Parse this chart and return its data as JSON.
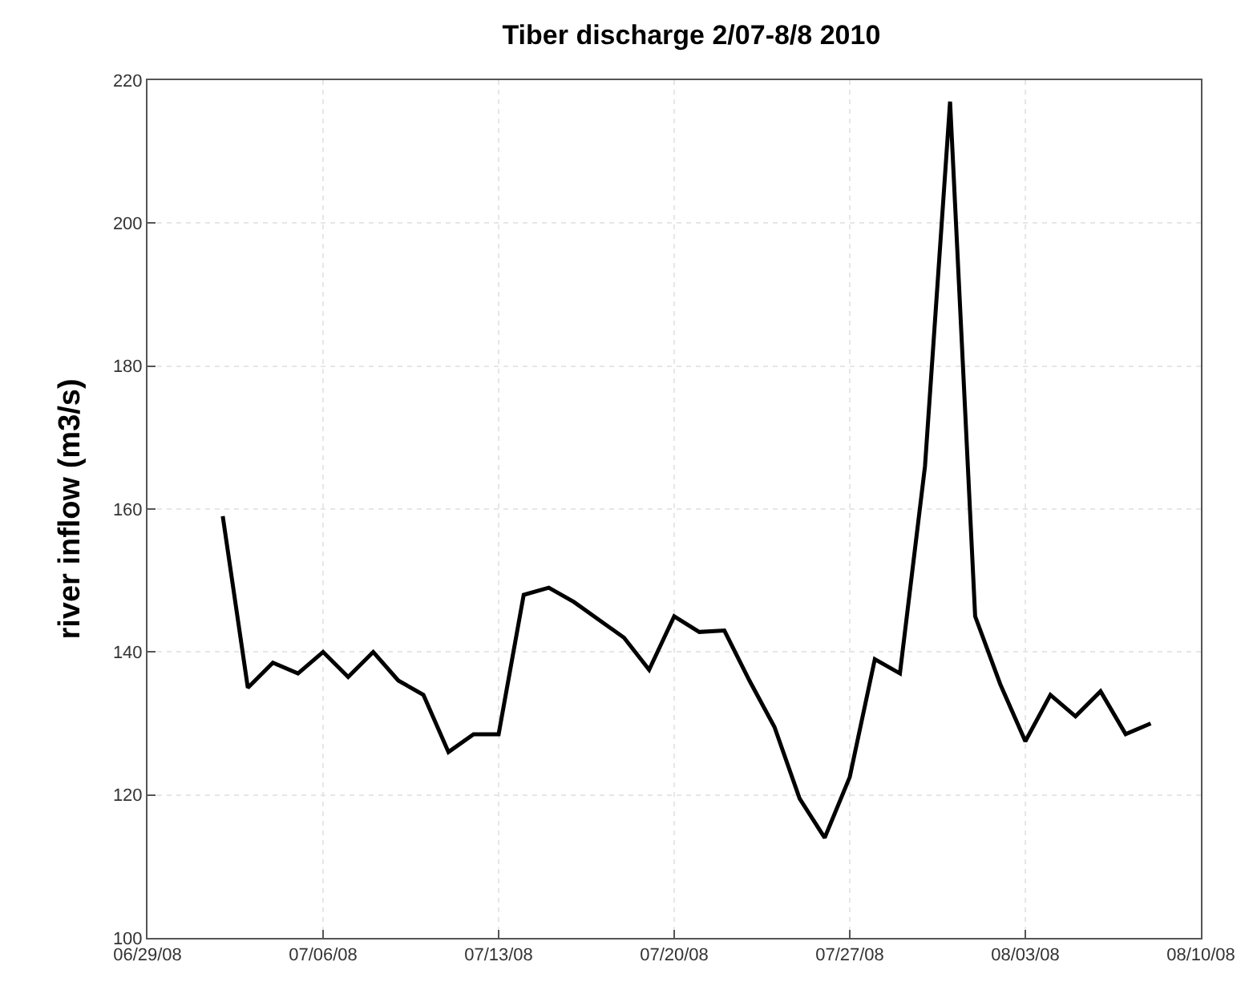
{
  "chart_data": {
    "type": "line",
    "title": "Tiber discharge 2/07-8/8 2010",
    "ylabel": "river inflow (m3/s)",
    "x": [
      "--07-02",
      "--07-03",
      "--07-04",
      "--07-05",
      "--07-06",
      "--07-07",
      "--07-08",
      "--07-09",
      "--07-10",
      "--07-11",
      "--07-12",
      "--07-13",
      "--07-14",
      "--07-15",
      "--07-16",
      "--07-17",
      "--07-18",
      "--07-19",
      "--07-20",
      "--07-21",
      "--07-22",
      "--07-23",
      "--07-24",
      "--07-25",
      "--07-26",
      "--07-27",
      "--07-28",
      "--07-29",
      "--07-30",
      "--07-31",
      "--08-01",
      "--08-02",
      "--08-03",
      "--08-04",
      "--08-05",
      "--08-06",
      "--08-07",
      "--08-08"
    ],
    "series": [
      {
        "color": "#000000",
        "values": [
          159,
          135,
          138.5,
          137,
          140,
          136.5,
          140,
          136,
          134,
          126,
          128.5,
          128.5,
          148,
          149,
          147,
          144.5,
          142,
          137.5,
          145,
          142.8,
          143,
          136,
          129.5,
          119.5,
          114,
          122.5,
          139,
          137,
          166,
          217,
          145,
          135.5,
          127.5,
          134,
          131,
          134.5,
          128.5,
          130
        ]
      }
    ],
    "xlim": [
      "--06-29",
      "--08-10"
    ],
    "xticks": [
      {
        "value": "--06-29",
        "label": "06/29/08"
      },
      {
        "value": "--07-06",
        "label": "07/06/08"
      },
      {
        "value": "--07-13",
        "label": "07/13/08"
      },
      {
        "value": "--07-20",
        "label": "07/20/08"
      },
      {
        "value": "--07-27",
        "label": "07/27/08"
      },
      {
        "value": "--08-03",
        "label": "08/03/08"
      },
      {
        "value": "--08-10",
        "label": "08/10/08"
      }
    ],
    "ylim": [
      100,
      220
    ],
    "yticks": [
      100,
      120,
      140,
      160,
      180,
      200,
      220
    ],
    "grid": true,
    "marker": "none",
    "line_style": "solid"
  }
}
